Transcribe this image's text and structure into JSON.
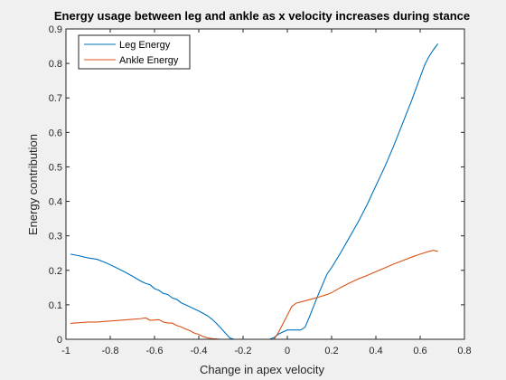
{
  "chart_data": {
    "type": "line",
    "title": "Energy usage between leg and ankle as x velocity increases during stance",
    "xlabel": "Change in apex velocity",
    "ylabel": "Energy contribution",
    "xlim": [
      -1,
      0.8
    ],
    "ylim": [
      0,
      0.9
    ],
    "xticks": [
      "-1",
      "-0.8",
      "-0.6",
      "-0.4",
      "-0.2",
      "0",
      "0.2",
      "0.4",
      "0.6",
      "0.8"
    ],
    "yticks": [
      "0",
      "0.1",
      "0.2",
      "0.3",
      "0.4",
      "0.5",
      "0.6",
      "0.7",
      "0.8",
      "0.9"
    ],
    "grid": false,
    "legend_position": "top-left",
    "series": [
      {
        "name": "Leg Energy",
        "color": "#0072BD",
        "x": [
          -0.98,
          -0.94,
          -0.9,
          -0.86,
          -0.82,
          -0.78,
          -0.74,
          -0.7,
          -0.66,
          -0.64,
          -0.62,
          -0.6,
          -0.58,
          -0.56,
          -0.54,
          -0.52,
          -0.5,
          -0.48,
          -0.46,
          -0.44,
          -0.42,
          -0.4,
          -0.38,
          -0.36,
          -0.34,
          -0.32,
          -0.3,
          -0.28,
          -0.26,
          -0.24,
          -0.22,
          -0.2,
          -0.16,
          -0.12,
          -0.08,
          -0.06,
          -0.04,
          0,
          0.02,
          0.04,
          0.06,
          0.08,
          0.1,
          0.12,
          0.14,
          0.16,
          0.18,
          0.2,
          0.24,
          0.28,
          0.32,
          0.36,
          0.4,
          0.44,
          0.48,
          0.52,
          0.56,
          0.6,
          0.62,
          0.64,
          0.66,
          0.68
        ],
        "values": [
          0.247,
          0.242,
          0.236,
          0.232,
          0.222,
          0.21,
          0.197,
          0.183,
          0.168,
          0.162,
          0.158,
          0.147,
          0.142,
          0.133,
          0.13,
          0.12,
          0.116,
          0.106,
          0.1,
          0.094,
          0.088,
          0.082,
          0.075,
          0.068,
          0.058,
          0.046,
          0.032,
          0.018,
          0.004,
          0.0,
          0.0,
          0.0,
          0.0,
          0.0,
          0.0,
          0.005,
          0.015,
          0.027,
          0.027,
          0.027,
          0.027,
          0.035,
          0.065,
          0.098,
          0.13,
          0.16,
          0.19,
          0.208,
          0.25,
          0.295,
          0.34,
          0.39,
          0.445,
          0.5,
          0.56,
          0.625,
          0.69,
          0.76,
          0.795,
          0.82,
          0.84,
          0.857
        ]
      },
      {
        "name": "Ankle Energy",
        "color": "#D95319",
        "x": [
          -0.98,
          -0.94,
          -0.9,
          -0.86,
          -0.82,
          -0.78,
          -0.74,
          -0.7,
          -0.66,
          -0.64,
          -0.62,
          -0.6,
          -0.58,
          -0.56,
          -0.54,
          -0.52,
          -0.5,
          -0.48,
          -0.46,
          -0.44,
          -0.42,
          -0.4,
          -0.38,
          -0.36,
          -0.34,
          -0.3,
          -0.26,
          -0.22,
          -0.18,
          -0.14,
          -0.1,
          -0.06,
          -0.04,
          -0.02,
          0,
          0.02,
          0.04,
          0.06,
          0.1,
          0.14,
          0.18,
          0.2,
          0.24,
          0.28,
          0.32,
          0.36,
          0.4,
          0.44,
          0.48,
          0.52,
          0.56,
          0.6,
          0.64,
          0.66,
          0.68
        ],
        "values": [
          0.046,
          0.048,
          0.05,
          0.05,
          0.052,
          0.054,
          0.056,
          0.058,
          0.06,
          0.062,
          0.055,
          0.056,
          0.057,
          0.05,
          0.047,
          0.047,
          0.04,
          0.036,
          0.03,
          0.025,
          0.018,
          0.014,
          0.008,
          0.004,
          0.002,
          0.0,
          0.0,
          0.0,
          0.0,
          0.0,
          0.0,
          0.0,
          0.02,
          0.045,
          0.07,
          0.095,
          0.105,
          0.108,
          0.115,
          0.122,
          0.13,
          0.135,
          0.15,
          0.163,
          0.175,
          0.185,
          0.196,
          0.207,
          0.218,
          0.228,
          0.238,
          0.247,
          0.255,
          0.258,
          0.255
        ]
      }
    ]
  }
}
